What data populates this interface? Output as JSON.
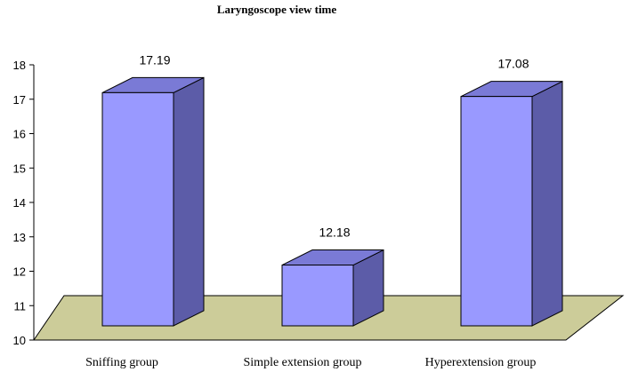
{
  "chart_data": {
    "type": "bar",
    "title": "Laryngoscope view time",
    "categories": [
      "Sniffing group",
      "Simple extension group",
      "Hyperextension group"
    ],
    "values": [
      17.19,
      12.18,
      17.08
    ],
    "value_labels": [
      "17.19",
      "12.18",
      "17.08"
    ],
    "ylim": [
      10,
      18
    ],
    "yticks": [
      "10",
      "11",
      "12",
      "13",
      "14",
      "15",
      "16",
      "17",
      "18"
    ],
    "grid": false,
    "legend": "none",
    "style": "3d-column",
    "colors": {
      "bar_front": "#9999FF",
      "bar_side": "#5C5CA8",
      "bar_top": "#7A7AD6",
      "floor": "#CCCC99",
      "outline": "#000000"
    }
  }
}
